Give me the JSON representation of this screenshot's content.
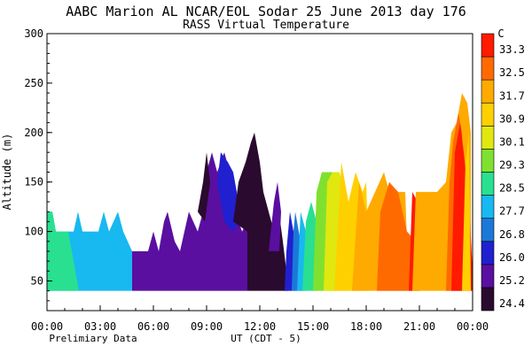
{
  "chart_data": {
    "type": "heatmap",
    "title": "AABC Marion AL  NCAR/EOL Sodar  25 June 2013  day 176",
    "subtitle": "RASS Virtual Temperature",
    "xlabel": "UT  (CDT - 5)",
    "ylabel": "Altitude (m)",
    "footnote": "Prelimiary Data",
    "xlim": [
      0,
      24
    ],
    "ylim": [
      20,
      300
    ],
    "x_ticks": [
      {
        "v": 0,
        "label": "00:00"
      },
      {
        "v": 3,
        "label": "03:00"
      },
      {
        "v": 6,
        "label": "06:00"
      },
      {
        "v": 9,
        "label": "09:00"
      },
      {
        "v": 12,
        "label": "12:00"
      },
      {
        "v": 15,
        "label": "15:00"
      },
      {
        "v": 18,
        "label": "18:00"
      },
      {
        "v": 21,
        "label": "21:00"
      },
      {
        "v": 24,
        "label": "00:00"
      }
    ],
    "y_ticks": [
      {
        "v": 50,
        "label": "50"
      },
      {
        "v": 100,
        "label": "100"
      },
      {
        "v": 150,
        "label": "150"
      },
      {
        "v": 200,
        "label": "200"
      },
      {
        "v": 250,
        "label": "250"
      },
      {
        "v": 300,
        "label": "300"
      }
    ],
    "colorbar": {
      "unit": "C",
      "levels": [
        {
          "value": "24.4",
          "color": "#2a0a2e"
        },
        {
          "value": "25.2",
          "color": "#5a0fa0"
        },
        {
          "value": "26.0",
          "color": "#2020d0"
        },
        {
          "value": "26.8",
          "color": "#1c78d8"
        },
        {
          "value": "27.7",
          "color": "#18b8f0"
        },
        {
          "value": "28.5",
          "color": "#28e090"
        },
        {
          "value": "29.3",
          "color": "#80e030"
        },
        {
          "value": "30.1",
          "color": "#e0e810"
        },
        {
          "value": "30.9",
          "color": "#ffd000"
        },
        {
          "value": "31.7",
          "color": "#ffaa00"
        },
        {
          "value": "32.5",
          "color": "#ff6a00"
        },
        {
          "value": "33.3",
          "color": "#ff1a00"
        }
      ]
    },
    "regions": [
      {
        "level": 4,
        "points": [
          [
            0,
            40
          ],
          [
            0,
            120
          ],
          [
            0.3,
            120
          ],
          [
            0.5,
            100
          ],
          [
            1.5,
            100
          ],
          [
            1.75,
            120
          ],
          [
            2,
            100
          ],
          [
            2.9,
            100
          ],
          [
            3.2,
            120
          ],
          [
            3.5,
            100
          ],
          [
            4,
            120
          ],
          [
            4.3,
            100
          ],
          [
            4.8,
            80
          ],
          [
            4.8,
            40
          ]
        ]
      },
      {
        "level": 5,
        "points": [
          [
            0,
            40
          ],
          [
            0,
            120
          ],
          [
            0.3,
            120
          ],
          [
            0.5,
            100
          ],
          [
            1.2,
            100
          ],
          [
            1.4,
            80
          ],
          [
            1.8,
            40
          ]
        ]
      },
      {
        "level": 1,
        "points": [
          [
            4.8,
            40
          ],
          [
            4.8,
            80
          ],
          [
            5.7,
            80
          ],
          [
            6,
            100
          ],
          [
            6.3,
            80
          ],
          [
            6.6,
            110
          ],
          [
            6.8,
            120
          ],
          [
            7.2,
            90
          ],
          [
            7.5,
            80
          ],
          [
            8,
            120
          ],
          [
            8.5,
            100
          ],
          [
            8.8,
            120
          ],
          [
            9,
            160
          ],
          [
            9.3,
            180
          ],
          [
            9.6,
            160
          ],
          [
            10,
            180
          ],
          [
            10.3,
            160
          ],
          [
            10.6,
            140
          ],
          [
            10.8,
            110
          ],
          [
            11,
            100
          ],
          [
            11.3,
            110
          ],
          [
            11.3,
            40
          ]
        ]
      },
      {
        "level": 2,
        "points": [
          [
            9.6,
            150
          ],
          [
            9.8,
            180
          ],
          [
            10.2,
            170
          ],
          [
            10.5,
            160
          ],
          [
            10.7,
            140
          ],
          [
            10.8,
            110
          ],
          [
            10.5,
            100
          ],
          [
            10,
            110
          ]
        ]
      },
      {
        "level": 0,
        "points": [
          [
            8.5,
            120
          ],
          [
            8.8,
            150
          ],
          [
            9,
            180
          ],
          [
            9.2,
            150
          ],
          [
            8.9,
            110
          ]
        ]
      },
      {
        "level": 0,
        "points": [
          [
            10.5,
            110
          ],
          [
            10.8,
            150
          ],
          [
            11.2,
            170
          ],
          [
            11.5,
            190
          ],
          [
            11.7,
            200
          ],
          [
            12,
            170
          ],
          [
            12.2,
            140
          ],
          [
            12.5,
            120
          ],
          [
            12.8,
            100
          ],
          [
            13,
            130
          ],
          [
            13.3,
            90
          ],
          [
            13.5,
            60
          ],
          [
            13.6,
            40
          ],
          [
            11.3,
            40
          ],
          [
            11.3,
            100
          ]
        ]
      },
      {
        "level": 1,
        "points": [
          [
            12.5,
            80
          ],
          [
            12.8,
            130
          ],
          [
            13,
            150
          ],
          [
            13.2,
            120
          ],
          [
            13.1,
            80
          ]
        ]
      },
      {
        "level": 2,
        "points": [
          [
            13.4,
            40
          ],
          [
            13.5,
            80
          ],
          [
            13.7,
            120
          ],
          [
            13.9,
            100
          ],
          [
            14,
            60
          ],
          [
            14,
            40
          ]
        ]
      },
      {
        "level": 3,
        "points": [
          [
            13.8,
            40
          ],
          [
            13.9,
            100
          ],
          [
            14,
            120
          ],
          [
            14.3,
            90
          ],
          [
            14.4,
            40
          ]
        ]
      },
      {
        "level": 4,
        "points": [
          [
            14.1,
            40
          ],
          [
            14.3,
            120
          ],
          [
            14.6,
            100
          ],
          [
            14.6,
            40
          ]
        ]
      },
      {
        "level": 5,
        "points": [
          [
            14.4,
            40
          ],
          [
            14.6,
            110
          ],
          [
            14.9,
            130
          ],
          [
            15.2,
            110
          ],
          [
            15.2,
            40
          ]
        ]
      },
      {
        "level": 6,
        "points": [
          [
            15,
            40
          ],
          [
            15.2,
            140
          ],
          [
            15.5,
            160
          ],
          [
            16.1,
            160
          ],
          [
            16.3,
            140
          ],
          [
            16.3,
            40
          ]
        ]
      },
      {
        "level": 7,
        "points": [
          [
            15.6,
            40
          ],
          [
            15.8,
            150
          ],
          [
            16.1,
            160
          ],
          [
            16.5,
            160
          ],
          [
            16.8,
            130
          ],
          [
            17,
            40
          ]
        ]
      },
      {
        "level": 8,
        "points": [
          [
            16.2,
            40
          ],
          [
            16.6,
            170
          ],
          [
            17,
            130
          ],
          [
            17.4,
            160
          ],
          [
            17.8,
            140
          ],
          [
            18,
            150
          ],
          [
            18.2,
            40
          ]
        ]
      },
      {
        "level": 9,
        "points": [
          [
            17.2,
            40
          ],
          [
            17.6,
            150
          ],
          [
            18,
            120
          ],
          [
            18.5,
            140
          ],
          [
            19,
            160
          ],
          [
            19.3,
            140
          ],
          [
            20.2,
            140
          ],
          [
            20.4,
            40
          ]
        ]
      },
      {
        "level": 10,
        "points": [
          [
            18.6,
            40
          ],
          [
            18.8,
            120
          ],
          [
            19.3,
            150
          ],
          [
            19.8,
            140
          ],
          [
            20.3,
            100
          ],
          [
            20.8,
            90
          ],
          [
            21,
            40
          ]
        ]
      },
      {
        "level": 11,
        "points": [
          [
            20.4,
            40
          ],
          [
            20.6,
            140
          ],
          [
            20.9,
            130
          ],
          [
            21,
            40
          ]
        ]
      },
      {
        "level": 9,
        "points": [
          [
            20.6,
            40
          ],
          [
            20.8,
            140
          ],
          [
            21.2,
            140
          ],
          [
            21.5,
            140
          ],
          [
            21.8,
            140
          ],
          [
            22,
            140
          ],
          [
            22.5,
            150
          ],
          [
            22.8,
            200
          ],
          [
            23.1,
            210
          ],
          [
            23.4,
            240
          ],
          [
            23.7,
            230
          ],
          [
            23.9,
            200
          ],
          [
            23.9,
            40
          ]
        ]
      },
      {
        "level": 10,
        "points": [
          [
            22.5,
            40
          ],
          [
            22.7,
            150
          ],
          [
            22.9,
            190
          ],
          [
            23.2,
            220
          ],
          [
            23.4,
            200
          ],
          [
            23.5,
            160
          ],
          [
            23.5,
            40
          ]
        ]
      },
      {
        "level": 11,
        "points": [
          [
            22.8,
            40
          ],
          [
            23,
            180
          ],
          [
            23.3,
            210
          ],
          [
            23.5,
            180
          ],
          [
            23.8,
            130
          ],
          [
            24,
            60
          ],
          [
            24,
            40
          ]
        ]
      },
      {
        "level": 8,
        "points": [
          [
            23.4,
            40
          ],
          [
            23.6,
            170
          ],
          [
            23.8,
            200
          ],
          [
            23.9,
            40
          ]
        ]
      }
    ]
  }
}
